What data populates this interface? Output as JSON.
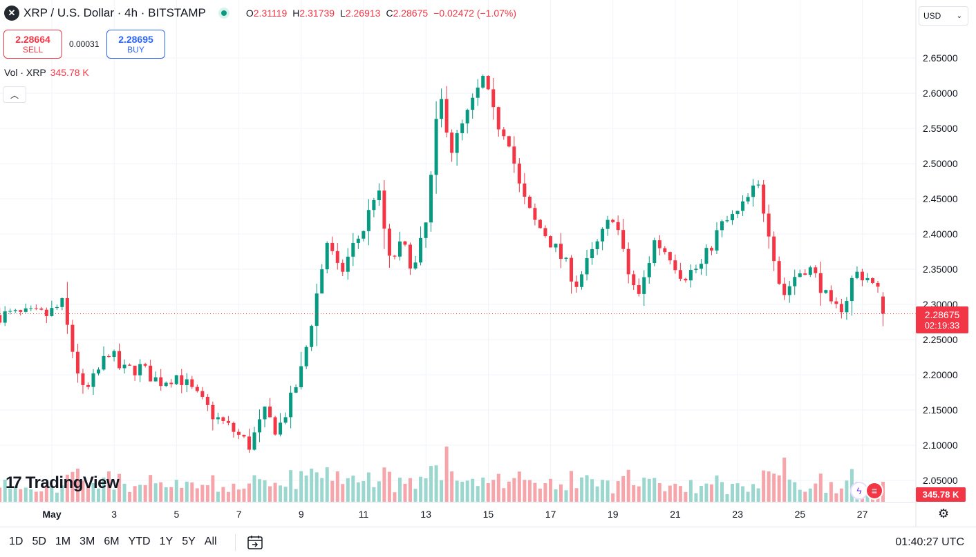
{
  "header": {
    "symbol_title": "XRP / U.S. Dollar · 4h · BITSTAMP",
    "ohlc": [
      {
        "key": "O",
        "value": "2.31119"
      },
      {
        "key": "H",
        "value": "2.31739"
      },
      {
        "key": "L",
        "value": "2.26913"
      },
      {
        "key": "C",
        "value": "2.28675"
      }
    ],
    "change": "−0.02472 (−1.07%)"
  },
  "trade": {
    "sell_price": "2.28664",
    "sell_label": "SELL",
    "spread": "0.00031",
    "buy_price": "2.28695",
    "buy_label": "BUY"
  },
  "volume_legend": {
    "label": "Vol · XRP",
    "value": "345.78 K"
  },
  "currency": "USD",
  "brand": "TradingView",
  "last_price": {
    "price": "2.28675",
    "countdown": "02:19:33",
    "volume": "345.78 K"
  },
  "time_ranges": [
    "1D",
    "5D",
    "1M",
    "3M",
    "6M",
    "YTD",
    "1Y",
    "5Y",
    "All"
  ],
  "clock": "01:40:27 UTC",
  "colors": {
    "up": "#089981",
    "down": "#f23645",
    "up_volume": "#9bd7ce",
    "down_volume": "#f6a5ab"
  },
  "chart_data": {
    "type": "candlestick",
    "interval": "4h",
    "y_ticks": [
      "2.05000",
      "2.10000",
      "2.15000",
      "2.20000",
      "2.25000",
      "2.30000",
      "2.35000",
      "2.40000",
      "2.45000",
      "2.50000",
      "2.55000",
      "2.60000",
      "2.65000"
    ],
    "y_range": [
      2.03,
      2.685
    ],
    "x_ticks": [
      "May",
      "3",
      "5",
      "7",
      "9",
      "11",
      "13",
      "15",
      "17",
      "19",
      "21",
      "23",
      "25",
      "27"
    ],
    "grid": true,
    "anchors": [
      {
        "day": 0.0,
        "price": 2.285
      },
      {
        "day": 0.5,
        "price": 2.3
      },
      {
        "day": 0.8,
        "price": 2.24
      },
      {
        "day": 1.2,
        "price": 2.17
      },
      {
        "day": 1.6,
        "price": 2.2
      },
      {
        "day": 2.0,
        "price": 2.235
      },
      {
        "day": 2.4,
        "price": 2.205
      },
      {
        "day": 3.0,
        "price": 2.21
      },
      {
        "day": 3.6,
        "price": 2.19
      },
      {
        "day": 4.2,
        "price": 2.2
      },
      {
        "day": 4.8,
        "price": 2.17
      },
      {
        "day": 5.4,
        "price": 2.14
      },
      {
        "day": 6.0,
        "price": 2.12
      },
      {
        "day": 6.5,
        "price": 2.1
      },
      {
        "day": 7.0,
        "price": 2.145
      },
      {
        "day": 7.4,
        "price": 2.12
      },
      {
        "day": 7.8,
        "price": 2.16
      },
      {
        "day": 8.2,
        "price": 2.21
      },
      {
        "day": 8.6,
        "price": 2.3
      },
      {
        "day": 9.0,
        "price": 2.39
      },
      {
        "day": 9.4,
        "price": 2.34
      },
      {
        "day": 9.8,
        "price": 2.38
      },
      {
        "day": 10.2,
        "price": 2.41
      },
      {
        "day": 10.6,
        "price": 2.47
      },
      {
        "day": 11.0,
        "price": 2.36
      },
      {
        "day": 11.4,
        "price": 2.385
      },
      {
        "day": 11.8,
        "price": 2.35
      },
      {
        "day": 12.2,
        "price": 2.42
      },
      {
        "day": 12.6,
        "price": 2.6
      },
      {
        "day": 13.0,
        "price": 2.52
      },
      {
        "day": 13.4,
        "price": 2.56
      },
      {
        "day": 14.0,
        "price": 2.62
      },
      {
        "day": 14.4,
        "price": 2.56
      },
      {
        "day": 14.8,
        "price": 2.54
      },
      {
        "day": 15.2,
        "price": 2.46
      },
      {
        "day": 15.6,
        "price": 2.42
      },
      {
        "day": 16.0,
        "price": 2.4
      },
      {
        "day": 16.6,
        "price": 2.36
      },
      {
        "day": 17.0,
        "price": 2.33
      },
      {
        "day": 17.6,
        "price": 2.38
      },
      {
        "day": 18.2,
        "price": 2.43
      },
      {
        "day": 18.6,
        "price": 2.35
      },
      {
        "day": 19.0,
        "price": 2.31
      },
      {
        "day": 19.5,
        "price": 2.39
      },
      {
        "day": 20.0,
        "price": 2.37
      },
      {
        "day": 20.4,
        "price": 2.34
      },
      {
        "day": 21.0,
        "price": 2.355
      },
      {
        "day": 21.6,
        "price": 2.41
      },
      {
        "day": 22.2,
        "price": 2.43
      },
      {
        "day": 22.8,
        "price": 2.47
      },
      {
        "day": 23.2,
        "price": 2.4
      },
      {
        "day": 23.6,
        "price": 2.31
      },
      {
        "day": 24.0,
        "price": 2.34
      },
      {
        "day": 24.4,
        "price": 2.355
      },
      {
        "day": 24.8,
        "price": 2.33
      },
      {
        "day": 25.2,
        "price": 2.29
      },
      {
        "day": 25.6,
        "price": 2.3
      },
      {
        "day": 25.9,
        "price": 2.345
      },
      {
        "day": 26.3,
        "price": 2.34
      },
      {
        "day": 26.6,
        "price": 2.32
      },
      {
        "day": 26.85,
        "price": 2.311
      }
    ],
    "last_candle": {
      "open": 2.31119,
      "high": 2.31739,
      "low": 2.26913,
      "close": 2.28675
    },
    "volume_spikes": [
      {
        "day": 0.9,
        "value": 0.6
      },
      {
        "day": 1.9,
        "value": 0.55
      },
      {
        "day": 8.4,
        "value": 0.6
      },
      {
        "day": 9.1,
        "value": 0.55
      },
      {
        "day": 12.7,
        "value": 1.0
      },
      {
        "day": 12.85,
        "value": 0.55
      },
      {
        "day": 23.5,
        "value": 0.8
      },
      {
        "day": 23.0,
        "value": 0.55
      }
    ]
  }
}
